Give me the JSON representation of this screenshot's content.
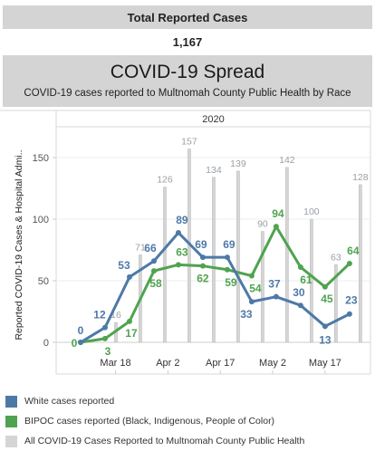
{
  "kpi": {
    "label": "Total Reported Cases",
    "value": "1,167"
  },
  "header": {
    "title": "COVID-19 Spread",
    "subtitle": "COVID-19 cases reported to Multnomah County Public Health by Race"
  },
  "colors": {
    "white": "#4e79a7",
    "bipoc": "#4fa34f",
    "all": "#d5d5d5",
    "panel": "#d4d4d4"
  },
  "chart_data": {
    "type": "line",
    "title": "COVID-19 Spread",
    "subtitle": "COVID-19 cases reported to Multnomah County Public Health by Race",
    "column_header": "2020",
    "ylabel": "Reported COVID-19 Cases & Hospital Admi..",
    "xlabel": "",
    "ylim": [
      0,
      175
    ],
    "yticks": [
      0,
      50,
      100,
      150
    ],
    "grid": true,
    "x_ticks": [
      "Mar 18",
      "Apr 2",
      "Apr 17",
      "May 2",
      "May 17"
    ],
    "x_tick_days": [
      17,
      32,
      47,
      62,
      77
    ],
    "series": [
      {
        "name": "White cases reported",
        "color": "#4e79a7",
        "days": [
          7,
          14,
          21,
          28,
          35,
          42,
          49,
          56,
          63,
          70,
          77,
          84
        ],
        "values": [
          0,
          12,
          53,
          66,
          89,
          69,
          69,
          33,
          37,
          30,
          13,
          23
        ]
      },
      {
        "name": "BIPOC cases reported (Black, Indigenous, People of Color)",
        "color": "#4fa34f",
        "days": [
          7,
          14,
          21,
          28,
          35,
          42,
          49,
          56,
          63,
          70,
          77,
          84
        ],
        "values": [
          0,
          3,
          17,
          58,
          63,
          62,
          59,
          54,
          94,
          61,
          45,
          64
        ]
      },
      {
        "name": "All COVID-19 Cases Reported to Multnomah County Public Health",
        "color": "#d5d5d5",
        "days": [
          14,
          21,
          28,
          35,
          42,
          49,
          56,
          63,
          70,
          77,
          84
        ],
        "values": [
          16,
          71,
          126,
          157,
          134,
          139,
          90,
          142,
          100,
          63,
          128
        ]
      }
    ]
  },
  "legend": [
    {
      "label": "White cases reported",
      "color": "#4e79a7"
    },
    {
      "label": "BIPOC cases reported (Black, Indigenous, People of Color)",
      "color": "#4fa34f"
    },
    {
      "label": "All COVID-19 Cases Reported to Multnomah County Public Health",
      "color": "#d5d5d5"
    }
  ]
}
